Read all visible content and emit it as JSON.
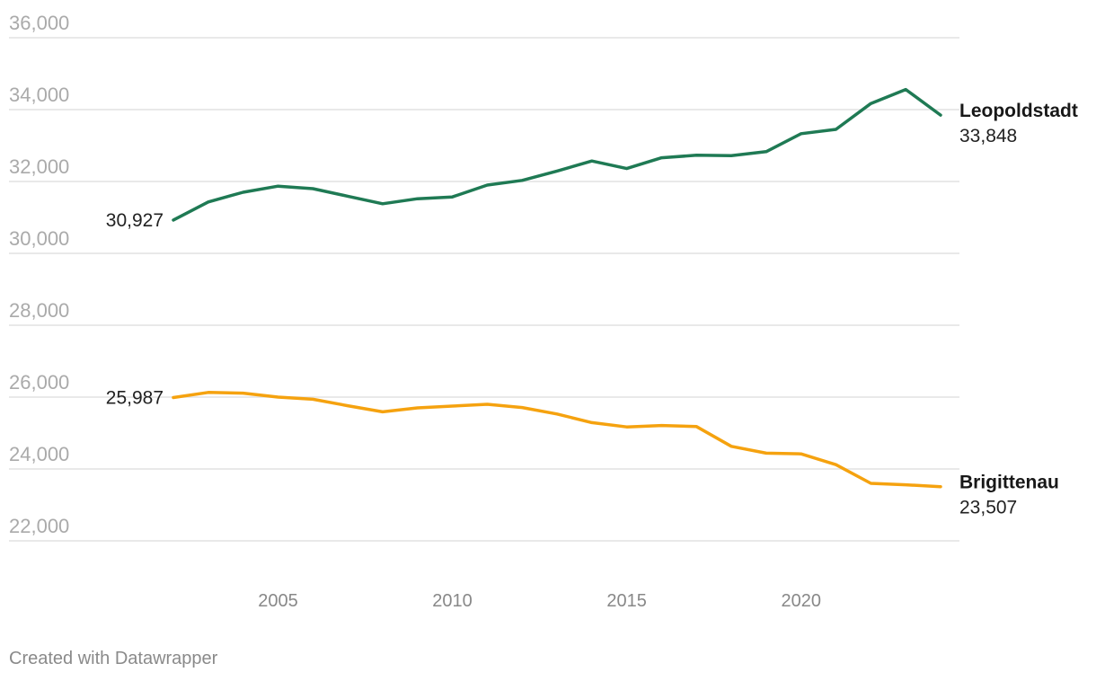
{
  "chart_data": {
    "type": "line",
    "x": [
      2002,
      2003,
      2004,
      2005,
      2006,
      2007,
      2008,
      2009,
      2010,
      2011,
      2012,
      2013,
      2014,
      2015,
      2016,
      2017,
      2018,
      2019,
      2020,
      2021,
      2022,
      2023,
      2024
    ],
    "series": [
      {
        "name": "Leopoldstadt",
        "color": "#1f7a54",
        "start_label": "30,927",
        "end_label": "33,848",
        "values": [
          30927,
          31430,
          31700,
          31870,
          31800,
          31590,
          31380,
          31520,
          31570,
          31900,
          32030,
          32290,
          32570,
          32360,
          32660,
          32730,
          32720,
          32830,
          33330,
          33450,
          34170,
          34560,
          33848
        ]
      },
      {
        "name": "Brigittenau",
        "color": "#f5a20f",
        "start_label": "25,987",
        "end_label": "23,507",
        "values": [
          25987,
          26130,
          26110,
          26000,
          25940,
          25760,
          25590,
          25700,
          25750,
          25800,
          25710,
          25530,
          25290,
          25170,
          25210,
          25180,
          24630,
          24440,
          24420,
          24120,
          23600,
          23560,
          23507
        ]
      }
    ],
    "yticks": [
      "22,000",
      "24,000",
      "26,000",
      "28,000",
      "30,000",
      "32,000",
      "34,000",
      "36,000"
    ],
    "ytick_values": [
      22000,
      24000,
      26000,
      28000,
      30000,
      32000,
      34000,
      36000
    ],
    "xticks": [
      "2005",
      "2010",
      "2015",
      "2020"
    ],
    "xtick_values": [
      2005,
      2010,
      2015,
      2020
    ],
    "ylim": [
      22000,
      36000
    ],
    "xlim": [
      2002,
      2024
    ],
    "grid": true
  },
  "footer": "Created with Datawrapper"
}
